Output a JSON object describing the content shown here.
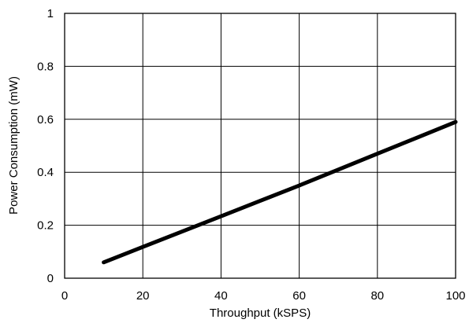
{
  "chart_data": {
    "type": "line",
    "title": "",
    "xlabel": "Throughput (kSPS)",
    "ylabel": "Power Consumption (mW)",
    "xlim": [
      0,
      100
    ],
    "ylim": [
      0,
      1
    ],
    "x_ticks": [
      0,
      20,
      40,
      60,
      80,
      100
    ],
    "y_ticks": [
      0,
      0.2,
      0.4,
      0.6,
      0.8,
      1
    ],
    "x_tick_labels": [
      "0",
      "20",
      "40",
      "60",
      "80",
      "100"
    ],
    "y_tick_labels": [
      "0",
      "0.2",
      "0.4",
      "0.6",
      "0.8",
      "1"
    ],
    "grid": true,
    "legend": "none",
    "series": [
      {
        "color": "#000000",
        "x": [
          10,
          20,
          30,
          40,
          50,
          60,
          70,
          80,
          90,
          100
        ],
        "y": [
          0.06,
          0.118,
          0.176,
          0.234,
          0.292,
          0.35,
          0.41,
          0.47,
          0.53,
          0.59
        ]
      }
    ]
  }
}
